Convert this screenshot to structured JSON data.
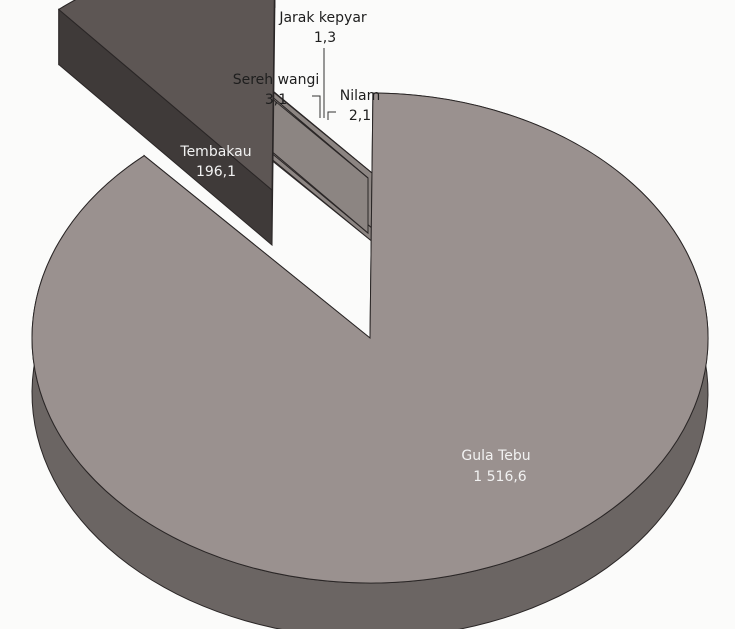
{
  "chart_data": {
    "type": "pie",
    "style": "3d-exploded",
    "categories": [
      "Gula Tebu",
      "Tembakau",
      "Sereh wangi",
      "Jarak kepyar",
      "Nilam"
    ],
    "values": [
      1516.6,
      196.1,
      3.1,
      1.3,
      2.1
    ],
    "labels": [
      {
        "name": "Gula Tebu",
        "value": "1 516,6"
      },
      {
        "name": "Tembakau",
        "value": "196,1"
      },
      {
        "name": "Sereh wangi",
        "value": "3,1"
      },
      {
        "name": "Jarak kepyar",
        "value": "1,3"
      },
      {
        "name": "Nilam",
        "value": "2,1"
      }
    ],
    "colors": {
      "main_top": "#9a918f",
      "main_side": "#6b6563",
      "tobacco_top": "#5d5654",
      "tobacco_side": "#3f3a39",
      "small_slices": "#b7b0ad",
      "leader_line": "#333333"
    },
    "legend": "none"
  }
}
